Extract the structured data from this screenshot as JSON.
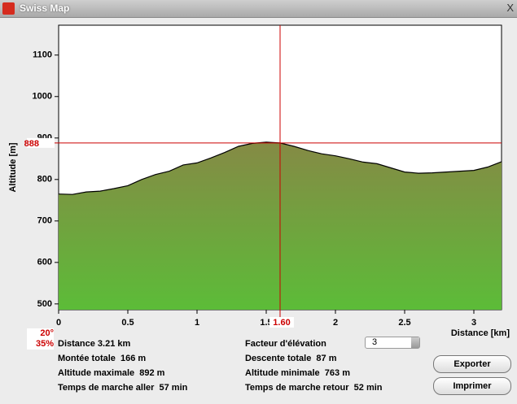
{
  "window": {
    "title": "Swiss Map",
    "close": "X"
  },
  "chart_data": {
    "type": "area",
    "ylabel": "Altitude [m]",
    "xlabel": "Distance [km]",
    "x": [
      0,
      0.1,
      0.2,
      0.3,
      0.4,
      0.5,
      0.6,
      0.7,
      0.8,
      0.9,
      1.0,
      1.1,
      1.2,
      1.3,
      1.4,
      1.5,
      1.6,
      1.7,
      1.8,
      1.9,
      2.0,
      2.1,
      2.2,
      2.3,
      2.4,
      2.5,
      2.6,
      2.7,
      2.8,
      2.9,
      3.0,
      3.1,
      3.2
    ],
    "values": [
      765,
      764,
      770,
      772,
      778,
      785,
      800,
      812,
      820,
      835,
      840,
      852,
      865,
      880,
      887,
      890,
      888,
      880,
      870,
      862,
      857,
      850,
      842,
      838,
      828,
      818,
      815,
      816,
      818,
      820,
      822,
      830,
      843
    ],
    "fill_gradient": [
      "#858a45",
      "#5cbc38"
    ],
    "line_color": "#000000",
    "xlim": [
      0,
      3.2
    ],
    "ylim": [
      486,
      1172
    ],
    "xticks": [
      0,
      0.5,
      1,
      1.5,
      2,
      2.5,
      3
    ],
    "yticks": [
      500,
      600,
      700,
      800,
      900,
      1000,
      1100
    ],
    "crosshair": {
      "x": {
        "value": 1.6,
        "label": "1.60"
      },
      "y": 888,
      "color": "#cc0000"
    }
  },
  "slope": {
    "angle": "20°",
    "percent": "35%"
  },
  "stats": {
    "left": [
      "Distance 3.21 km",
      "Montée totale  166 m",
      "Altitude maximale  892 m",
      "Temps de marche aller  57 min"
    ],
    "right": [
      "Facteur d'élévation",
      "Descente totale  87 m",
      "Altitude minimale  763 m",
      "Temps de marche retour  52 min"
    ]
  },
  "elevation_factor": "3",
  "buttons": [
    "Exporter",
    "Imprimer"
  ]
}
